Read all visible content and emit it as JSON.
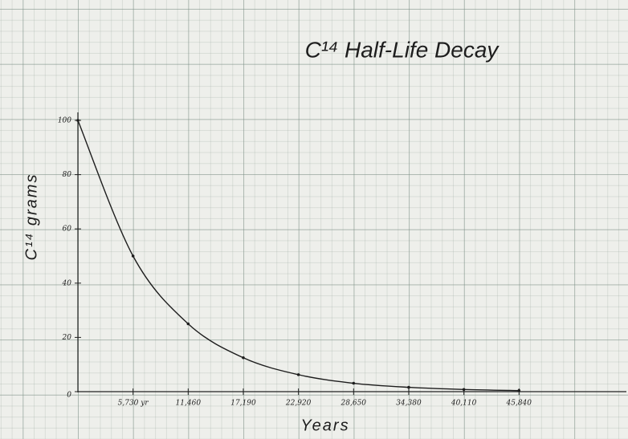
{
  "chart_data": {
    "type": "line",
    "title": "C¹⁴ Half-Life Decay",
    "x_label": "Years",
    "y_label": "C¹⁴ grams",
    "x": [
      0,
      5730,
      11460,
      17190,
      22920,
      28650,
      34380,
      40110,
      45840
    ],
    "values": [
      100,
      50,
      25,
      12.5,
      6.25,
      3.1,
      1.6,
      0.8,
      0.4
    ],
    "color": "#1d1d1d",
    "xlim": [
      0,
      57000
    ],
    "ylim": [
      0,
      100
    ],
    "xticks": [
      {
        "value": 5730,
        "label": "5,730 yr"
      },
      {
        "value": 11460,
        "label": "11,460"
      },
      {
        "value": 17190,
        "label": "17,190"
      },
      {
        "value": 22920,
        "label": "22,920"
      },
      {
        "value": 28650,
        "label": "28,650"
      },
      {
        "value": 34380,
        "label": "34,380"
      },
      {
        "value": 40110,
        "label": "40,110"
      },
      {
        "value": 45840,
        "label": "45,840"
      }
    ],
    "yticks": [
      0,
      20,
      40,
      60,
      80,
      100
    ]
  }
}
